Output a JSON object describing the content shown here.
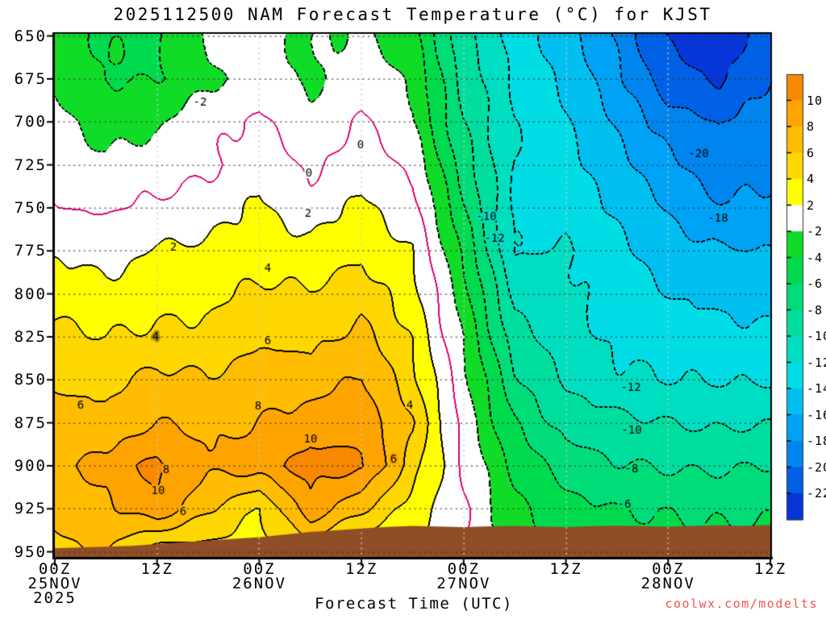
{
  "chart_data": {
    "type": "filled_contour_time_height_cross_section",
    "title": "2025112500 NAM Forecast Temperature (°C) for KJST",
    "model": "NAM",
    "station": "KJST",
    "init_time": "2025112500",
    "x_axis": {
      "label": "Forecast Time (UTC)",
      "range_hours": [
        0,
        84
      ],
      "ticks": [
        {
          "t": 0,
          "label": "00Z",
          "date": "25NOV",
          "year": "2025"
        },
        {
          "t": 12,
          "label": "12Z"
        },
        {
          "t": 24,
          "label": "00Z",
          "date": "26NOV"
        },
        {
          "t": 36,
          "label": "12Z"
        },
        {
          "t": 48,
          "label": "00Z",
          "date": "27NOV"
        },
        {
          "t": 60,
          "label": "12Z"
        },
        {
          "t": 72,
          "label": "00Z",
          "date": "28NOV"
        },
        {
          "t": 84,
          "label": "12Z"
        }
      ]
    },
    "y_axis": {
      "ticks": [
        650,
        675,
        700,
        725,
        750,
        775,
        800,
        825,
        850,
        875,
        900,
        925,
        950
      ],
      "range_pressure": [
        648.8,
        953
      ]
    },
    "contour_interval": 2,
    "zero_contour_color": "#E00073",
    "terrain_color": "#8F4E26",
    "grid_dot_color_horizontal": "rgba(45,45,45,0.8)",
    "grid_dot_color_vertical": "#c9c9c9",
    "band_colors": [
      "#F78800",
      "#FFA300",
      "#FFBC00",
      "#FFD700",
      "#FFFF00",
      "#FFFFFF",
      "#10DC28",
      "#00DB4E",
      "#00DD78",
      "#00DE9E",
      "#00DEC2",
      "#00DDE6",
      "#00C0F2",
      "#00A2F5",
      "#0085EF",
      "#0061E6",
      "#0736D8"
    ],
    "colorbar_tick_labels": [
      "10",
      "8",
      "6",
      "4",
      "2",
      "-2",
      "-4",
      "-6",
      "-8",
      "-10",
      "-12",
      "-14",
      "-16",
      "-18",
      "-20",
      "-22"
    ],
    "grid": {
      "t_hours": [
        0,
        6,
        12,
        18,
        24,
        30,
        36,
        42,
        48,
        54,
        60,
        66,
        72,
        78,
        84
      ],
      "p_levels": [
        650,
        675,
        700,
        725,
        750,
        775,
        800,
        825,
        850,
        875,
        900,
        925,
        950
      ],
      "temps": [
        [
          -3.0,
          -4.2,
          -4.4,
          -1.6,
          -1.5,
          -2.2,
          -1.7,
          -3.4,
          -9.4,
          -12.8,
          -15.0,
          -18.5,
          -22.3,
          -23.2,
          -20.8
        ],
        [
          -2.5,
          -4.0,
          -4.1,
          -2.4,
          -1.2,
          -2.4,
          -0.8,
          -2.2,
          -8.8,
          -12.3,
          -14.4,
          -17.5,
          -21.2,
          -22.2,
          -19.9
        ],
        [
          -1.2,
          -3.0,
          -2.4,
          -0.6,
          0.4,
          -1.4,
          0.4,
          -1.9,
          -8.0,
          -12.0,
          -13.8,
          -16.4,
          -19.0,
          -20.2,
          -18.9
        ],
        [
          -0.6,
          -1.6,
          -0.8,
          -0.5,
          1.4,
          -0.4,
          1.2,
          -0.4,
          -7.0,
          -12.1,
          -13.4,
          -15.4,
          -17.6,
          -19.4,
          -18.2
        ],
        [
          0.05,
          -0.2,
          0.3,
          1.0,
          2.4,
          0.8,
          2.6,
          0.8,
          -5.8,
          -12.4,
          -13.0,
          -14.4,
          -16.2,
          -17.8,
          -17.6
        ],
        [
          1.8,
          1.2,
          2.2,
          2.4,
          3.2,
          2.6,
          3.6,
          2.0,
          -4.4,
          -12.2,
          -11.8,
          -13.6,
          -15.0,
          -15.8,
          -16.0
        ],
        [
          3.2,
          2.6,
          3.2,
          3.4,
          4.4,
          4.2,
          5.2,
          2.8,
          -3.2,
          -10.6,
          -11.5,
          -13.0,
          -14.0,
          -14.6,
          -14.9
        ],
        [
          4.5,
          4.0,
          4.4,
          4.6,
          5.6,
          5.4,
          6.6,
          3.8,
          -2.2,
          -9.2,
          -11.0,
          -12.4,
          -12.9,
          -13.3,
          -13.6
        ],
        [
          5.6,
          5.4,
          6.6,
          6.2,
          7.0,
          7.0,
          8.2,
          4.6,
          -1.4,
          -7.6,
          -10.2,
          -11.6,
          -12.0,
          -12.1,
          -12.2
        ],
        [
          7.0,
          6.6,
          8.0,
          7.4,
          8.0,
          9.0,
          9.4,
          6.0,
          -0.8,
          -6.0,
          -8.8,
          -9.4,
          -10.0,
          -10.3,
          -10.1
        ],
        [
          7.8,
          8.6,
          10.6,
          8.4,
          9.0,
          10.8,
          10.4,
          5.0,
          -0.3,
          -4.6,
          -7.0,
          -7.8,
          -8.2,
          -8.3,
          -7.9
        ],
        [
          6.6,
          7.4,
          9.6,
          6.2,
          3.8,
          9.4,
          6.4,
          3.2,
          0.2,
          -3.4,
          -5.2,
          -6.0,
          -6.2,
          -6.4,
          -6.3
        ],
        [
          5.4,
          6.2,
          2.6,
          3.2,
          3.4,
          4.5,
          1.8,
          2.2,
          0.0,
          -3.0,
          -4.4,
          -5.0,
          -5.2,
          -5.4,
          -5.3
        ]
      ]
    },
    "terrain_profile": {
      "t_step_hours": 3,
      "top_pressure": [
        948,
        947.5,
        947,
        946.5,
        945.5,
        944.5,
        943.5,
        942.5,
        941.5,
        940,
        938.5,
        937.5,
        936.5,
        935.5,
        935,
        935.3,
        935.7,
        935.2,
        934.9,
        935.3,
        935.6,
        935.1,
        934.8,
        935.1,
        935.4,
        935.0,
        934.6,
        935.0,
        934.4
      ]
    },
    "contour_labels": [
      {
        "t": 17.0,
        "p": 688.6,
        "text": "-2"
      },
      {
        "t": 29.8,
        "p": 729.9,
        "text": "0"
      },
      {
        "t": 35.9,
        "p": 713.5,
        "text": "0"
      },
      {
        "t": 29.7,
        "p": 753.3,
        "text": "2"
      },
      {
        "t": 13.9,
        "p": 773.0,
        "text": "2"
      },
      {
        "t": 25.0,
        "p": 785.2,
        "text": "4"
      },
      {
        "t": 11.8,
        "p": 825.1,
        "text": "4"
      },
      {
        "t": 41.7,
        "p": 864.9,
        "text": "4"
      },
      {
        "t": 25.0,
        "p": 827.4,
        "text": "6"
      },
      {
        "t": 3.0,
        "p": 864.9,
        "text": "6"
      },
      {
        "t": 39.8,
        "p": 896.3,
        "text": "6"
      },
      {
        "t": 15.1,
        "p": 926.8,
        "text": "6"
      },
      {
        "t": 23.9,
        "p": 865.4,
        "text": "8"
      },
      {
        "t": 13.1,
        "p": 902.4,
        "text": "8"
      },
      {
        "t": 30.0,
        "p": 884.5,
        "text": "10"
      },
      {
        "t": 12.1,
        "p": 914.6,
        "text": "10"
      },
      {
        "t": 50.7,
        "p": 755.0,
        "text": "-10"
      },
      {
        "t": 51.6,
        "p": 767.7,
        "text": "-12"
      },
      {
        "t": 75.6,
        "p": 718.5,
        "text": "-20"
      },
      {
        "t": 77.8,
        "p": 756.0,
        "text": "-18"
      },
      {
        "t": 67.6,
        "p": 854.5,
        "text": "-12"
      },
      {
        "t": 67.7,
        "p": 879.3,
        "text": "-10"
      },
      {
        "t": 67.7,
        "p": 901.9,
        "text": "-8"
      },
      {
        "t": 66.9,
        "p": 922.5,
        "text": "-6"
      }
    ],
    "watermark": {
      "text": "coolwx.com/modelts",
      "color": "#EF5350"
    }
  }
}
